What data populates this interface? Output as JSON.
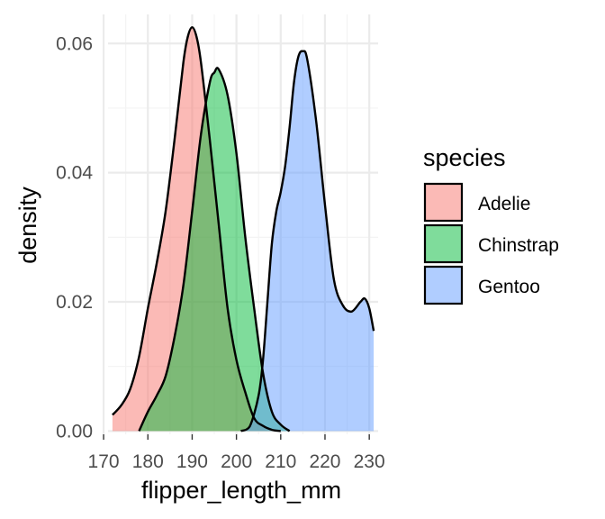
{
  "chart_data": {
    "type": "area",
    "title": "",
    "xlabel": "flipper_length_mm",
    "ylabel": "density",
    "xlim": [
      171,
      232
    ],
    "ylim": [
      -0.0005,
      0.0645
    ],
    "x_ticks": [
      170,
      180,
      190,
      200,
      210,
      220,
      230
    ],
    "x_tick_labels": [
      "170",
      "180",
      "190",
      "200",
      "210",
      "220",
      "230"
    ],
    "y_ticks": [
      0.0,
      0.02,
      0.04,
      0.06
    ],
    "y_tick_labels": [
      "0.00",
      "0.02",
      "0.04",
      "0.06"
    ],
    "grid": true,
    "legend": {
      "title": "species",
      "position": "right"
    },
    "series": [
      {
        "name": "Adelie",
        "color": "#F8766D",
        "x": [
          172,
          174,
          176,
          178,
          180,
          182,
          184,
          186,
          188,
          189,
          190,
          191,
          192,
          194,
          196,
          198,
          200,
          202,
          204,
          206,
          208,
          210
        ],
        "y": [
          0.0025,
          0.004,
          0.0065,
          0.0115,
          0.019,
          0.026,
          0.034,
          0.045,
          0.057,
          0.061,
          0.0625,
          0.061,
          0.057,
          0.045,
          0.032,
          0.019,
          0.011,
          0.006,
          0.002,
          0.0008,
          0.0002,
          0.0
        ]
      },
      {
        "name": "Chinstrap",
        "color": "#00BA38",
        "x": [
          178,
          180,
          182,
          184,
          186,
          188,
          190,
          192,
          194,
          195,
          196,
          198,
          200,
          202,
          204,
          206,
          208,
          210,
          212
        ],
        "y": [
          0.0,
          0.003,
          0.0055,
          0.0085,
          0.0145,
          0.0225,
          0.034,
          0.046,
          0.054,
          0.0555,
          0.056,
          0.052,
          0.043,
          0.03,
          0.019,
          0.009,
          0.003,
          0.001,
          0.0
        ]
      },
      {
        "name": "Gentoo",
        "color": "#619CFF",
        "x": [
          201,
          203,
          205,
          206,
          207,
          208,
          209,
          210,
          211,
          212,
          213,
          214,
          215,
          216,
          218,
          220,
          222,
          224,
          226,
          228,
          229,
          230,
          231
        ],
        "y": [
          0.0,
          0.0007,
          0.0055,
          0.011,
          0.02,
          0.029,
          0.034,
          0.037,
          0.041,
          0.047,
          0.054,
          0.058,
          0.0588,
          0.0575,
          0.048,
          0.035,
          0.0235,
          0.0195,
          0.0185,
          0.02,
          0.0205,
          0.019,
          0.0155
        ]
      }
    ]
  }
}
